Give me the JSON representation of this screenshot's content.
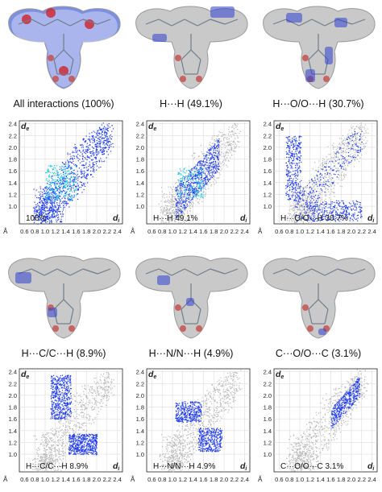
{
  "surfaces": [
    {
      "caption": "All interactions (100%)",
      "style": "full"
    },
    {
      "caption": "H···H (49.1%)",
      "style": "hh"
    },
    {
      "caption": "H···O/O···H (30.7%)",
      "style": "ho"
    },
    {
      "caption": "H···C/C···H (8.9%)",
      "style": "hc"
    },
    {
      "caption": "H···N/N···H (4.9%)",
      "style": "hn"
    },
    {
      "caption": "C···O/O···C (3.1%)",
      "style": "co"
    }
  ],
  "chart_data": [
    {
      "type": "scatter",
      "label": "100%",
      "pattern": "full",
      "xlabel": "di",
      "ylabel": "de",
      "xunit": "Å",
      "xticks": [
        "0.6",
        "0.8",
        "1.0",
        "1.2",
        "1.4",
        "1.6",
        "1.8",
        "2.0",
        "2.2",
        "2.4"
      ],
      "yticks": [
        "1.0",
        "1.2",
        "1.4",
        "1.6",
        "1.8",
        "2.0",
        "2.2",
        "2.4"
      ],
      "xlim": [
        0.5,
        2.5
      ],
      "ylim": [
        0.7,
        2.45
      ]
    },
    {
      "type": "scatter",
      "label": "H···H 49.1%",
      "pattern": "hh",
      "xlabel": "di",
      "ylabel": "de",
      "xunit": "Å",
      "xticks": [
        "0.6",
        "0.8",
        "1.0",
        "1.2",
        "1.4",
        "1.6",
        "1.8",
        "2.0",
        "2.2",
        "2.4"
      ],
      "yticks": [
        "1.0",
        "1.2",
        "1.4",
        "1.6",
        "1.8",
        "2.0",
        "2.2",
        "2.4"
      ],
      "xlim": [
        0.5,
        2.5
      ],
      "ylim": [
        0.7,
        2.45
      ]
    },
    {
      "type": "scatter",
      "label": "H···O/O···H 30.7%",
      "pattern": "ho",
      "xlabel": "di",
      "ylabel": "de",
      "xunit": "Å",
      "xticks": [
        "0.6",
        "0.8",
        "1.0",
        "1.2",
        "1.4",
        "1.6",
        "1.8",
        "2.0",
        "2.2",
        "2.4"
      ],
      "yticks": [
        "1.0",
        "1.2",
        "1.4",
        "1.6",
        "1.8",
        "2.0",
        "2.2",
        "2.4"
      ],
      "xlim": [
        0.5,
        2.5
      ],
      "ylim": [
        0.7,
        2.45
      ]
    },
    {
      "type": "scatter",
      "label": "H···C/C···H 8.9%",
      "pattern": "hc",
      "xlabel": "di",
      "ylabel": "de",
      "xunit": "Å",
      "xticks": [
        "0.6",
        "0.8",
        "1.0",
        "1.2",
        "1.4",
        "1.6",
        "1.8",
        "2.0",
        "2.2",
        "2.4"
      ],
      "yticks": [
        "1.0",
        "1.2",
        "1.4",
        "1.6",
        "1.8",
        "2.0",
        "2.2",
        "2.4"
      ],
      "xlim": [
        0.5,
        2.5
      ],
      "ylim": [
        0.7,
        2.45
      ]
    },
    {
      "type": "scatter",
      "label": "H···N/N···H 4.9%",
      "pattern": "hn",
      "xlabel": "di",
      "ylabel": "de",
      "xunit": "Å",
      "xticks": [
        "0.6",
        "0.8",
        "1.0",
        "1.2",
        "1.4",
        "1.6",
        "1.8",
        "2.0",
        "2.2",
        "2.4"
      ],
      "yticks": [
        "1.0",
        "1.2",
        "1.4",
        "1.6",
        "1.8",
        "2.0",
        "2.2",
        "2.4"
      ],
      "xlim": [
        0.5,
        2.5
      ],
      "ylim": [
        0.7,
        2.45
      ]
    },
    {
      "type": "scatter",
      "label": "C···O/O···C 3.1%",
      "pattern": "co",
      "xlabel": "di",
      "ylabel": "de",
      "xunit": "Å",
      "xticks": [
        "0.6",
        "0.8",
        "1.0",
        "1.2",
        "1.4",
        "1.6",
        "1.8",
        "2.0",
        "2.2",
        "2.4"
      ],
      "yticks": [
        "1.0",
        "1.2",
        "1.4",
        "1.6",
        "1.8",
        "2.0",
        "2.2",
        "2.4"
      ],
      "xlim": [
        0.5,
        2.5
      ],
      "ylim": [
        0.7,
        2.45
      ]
    }
  ],
  "colors": {
    "grey_points": "#b9b9b9",
    "blue_points": "#1f3cf0",
    "cyan_points": "#18c8e8",
    "surface_grey": "#c9c9c9"
  }
}
